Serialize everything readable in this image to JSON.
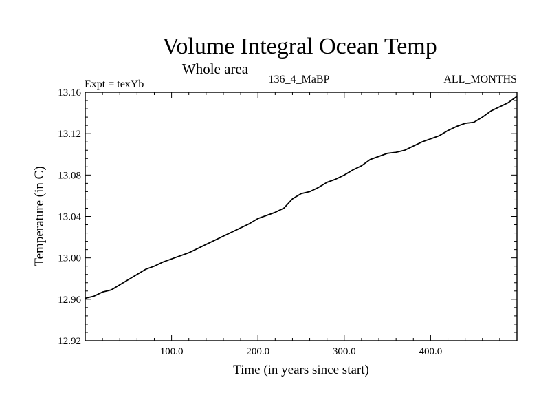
{
  "chart_data": {
    "type": "line",
    "title": "Volume Integral Ocean Temp",
    "subtitle": "Whole area",
    "annotations": {
      "left": "Expt = texYb",
      "center": "136_4_MaBP",
      "right": "ALL_MONTHS"
    },
    "xlabel": "Time (in years since start)",
    "ylabel": "Temperature (in C)",
    "xlim": [
      0,
      500
    ],
    "ylim": [
      12.92,
      13.16
    ],
    "x_ticks": [
      {
        "value": 100,
        "label": "100.0"
      },
      {
        "value": 200,
        "label": "200.0"
      },
      {
        "value": 300,
        "label": "300.0"
      },
      {
        "value": 400,
        "label": "400.0"
      }
    ],
    "y_ticks": [
      {
        "value": 12.92,
        "label": "12.92"
      },
      {
        "value": 12.96,
        "label": "12.96"
      },
      {
        "value": 13.0,
        "label": "13.00"
      },
      {
        "value": 13.04,
        "label": "13.04"
      },
      {
        "value": 13.08,
        "label": "13.08"
      },
      {
        "value": 13.12,
        "label": "13.12"
      },
      {
        "value": 13.16,
        "label": "13.16"
      }
    ],
    "grid": false,
    "series": [
      {
        "color": "#000000",
        "x": [
          0,
          10,
          20,
          30,
          40,
          50,
          60,
          70,
          80,
          90,
          100,
          110,
          120,
          130,
          140,
          150,
          160,
          170,
          180,
          190,
          200,
          210,
          220,
          230,
          240,
          250,
          260,
          270,
          280,
          290,
          300,
          310,
          320,
          330,
          340,
          350,
          360,
          370,
          380,
          390,
          400,
          410,
          420,
          430,
          440,
          450,
          460,
          470,
          480,
          490,
          500
        ],
        "y": [
          12.961,
          12.963,
          12.967,
          12.969,
          12.974,
          12.979,
          12.984,
          12.989,
          12.992,
          12.996,
          12.999,
          13.002,
          13.005,
          13.009,
          13.013,
          13.017,
          13.021,
          13.025,
          13.029,
          13.033,
          13.038,
          13.041,
          13.044,
          13.048,
          13.057,
          13.062,
          13.064,
          13.068,
          13.073,
          13.076,
          13.08,
          13.085,
          13.089,
          13.095,
          13.098,
          13.101,
          13.102,
          13.104,
          13.108,
          13.112,
          13.115,
          13.118,
          13.123,
          13.127,
          13.13,
          13.131,
          13.136,
          13.142,
          13.146,
          13.15,
          13.156
        ]
      }
    ]
  }
}
